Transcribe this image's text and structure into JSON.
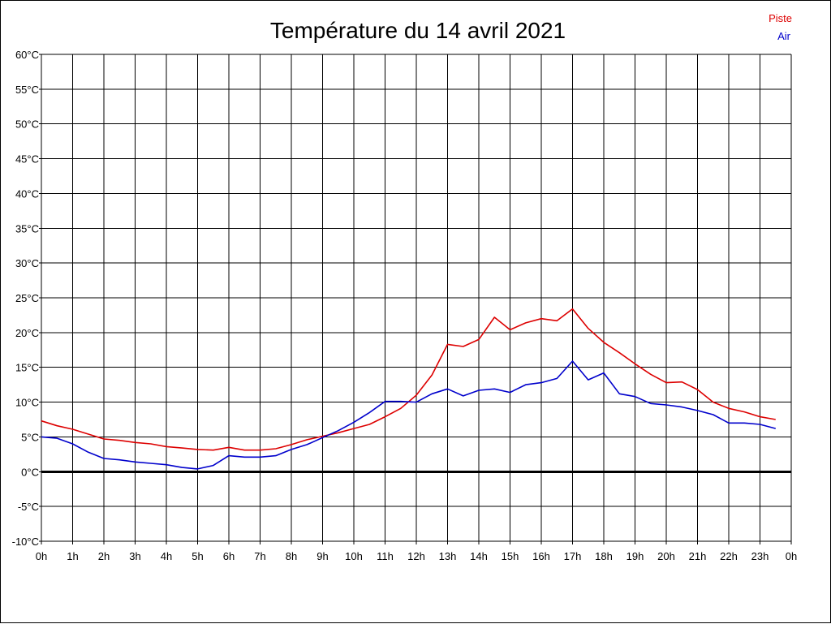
{
  "chart_data": {
    "type": "line",
    "title": "Température du 14 avril 2021",
    "xlabel": "",
    "ylabel": "",
    "x": [
      0,
      0.5,
      1,
      1.5,
      2,
      2.5,
      3,
      3.5,
      4,
      4.5,
      5,
      5.5,
      6,
      6.5,
      7,
      7.5,
      8,
      8.5,
      9,
      9.5,
      10,
      10.5,
      11,
      11.5,
      12,
      12.5,
      13,
      13.5,
      14,
      14.5,
      15,
      15.5,
      16,
      16.5,
      17,
      17.5,
      18,
      18.5,
      19,
      19.5,
      20,
      20.5,
      21,
      21.5,
      22,
      22.5,
      23,
      23.5
    ],
    "xlim": [
      0,
      24
    ],
    "ylim": [
      -10,
      60
    ],
    "x_ticks": [
      "0h",
      "1h",
      "2h",
      "3h",
      "4h",
      "5h",
      "6h",
      "7h",
      "8h",
      "9h",
      "10h",
      "11h",
      "12h",
      "13h",
      "14h",
      "15h",
      "16h",
      "17h",
      "18h",
      "19h",
      "20h",
      "21h",
      "22h",
      "23h",
      "0h"
    ],
    "y_ticks": [
      "60°C",
      "55°C",
      "50°C",
      "45°C",
      "40°C",
      "35°C",
      "30°C",
      "25°C",
      "20°C",
      "15°C",
      "10°C",
      "5°C",
      "0°C",
      "-5°C",
      "-10°C"
    ],
    "grid": true,
    "zero_line": true,
    "legend_position": "top-right",
    "series": [
      {
        "name": "Piste",
        "color": "#dd0000",
        "values": [
          7.3,
          6.6,
          6.1,
          5.4,
          4.7,
          4.5,
          4.2,
          4.0,
          3.6,
          3.4,
          3.2,
          3.1,
          3.5,
          3.1,
          3.1,
          3.3,
          3.9,
          4.6,
          5.1,
          5.6,
          6.2,
          6.8,
          7.9,
          9.1,
          11.0,
          13.9,
          18.3,
          18.0,
          19.0,
          22.2,
          20.4,
          21.4,
          22.0,
          21.7,
          23.4,
          20.6,
          18.6,
          17.1,
          15.5,
          14.0,
          12.8,
          12.9,
          11.8,
          10.0,
          9.1,
          8.6,
          7.9,
          7.5
        ]
      },
      {
        "name": "Air",
        "color": "#0000cc",
        "values": [
          5.0,
          4.8,
          4.0,
          2.8,
          1.9,
          1.7,
          1.4,
          1.2,
          1.0,
          0.6,
          0.4,
          0.9,
          2.3,
          2.1,
          2.1,
          2.3,
          3.2,
          3.9,
          4.9,
          5.9,
          7.1,
          8.5,
          10.1,
          10.1,
          10.0,
          11.2,
          11.9,
          10.9,
          11.7,
          11.9,
          11.4,
          12.5,
          12.8,
          13.4,
          15.9,
          13.2,
          14.2,
          11.2,
          10.8,
          9.8,
          9.6,
          9.3,
          8.8,
          8.2,
          7.0,
          7.0,
          6.8,
          6.2
        ]
      }
    ]
  }
}
